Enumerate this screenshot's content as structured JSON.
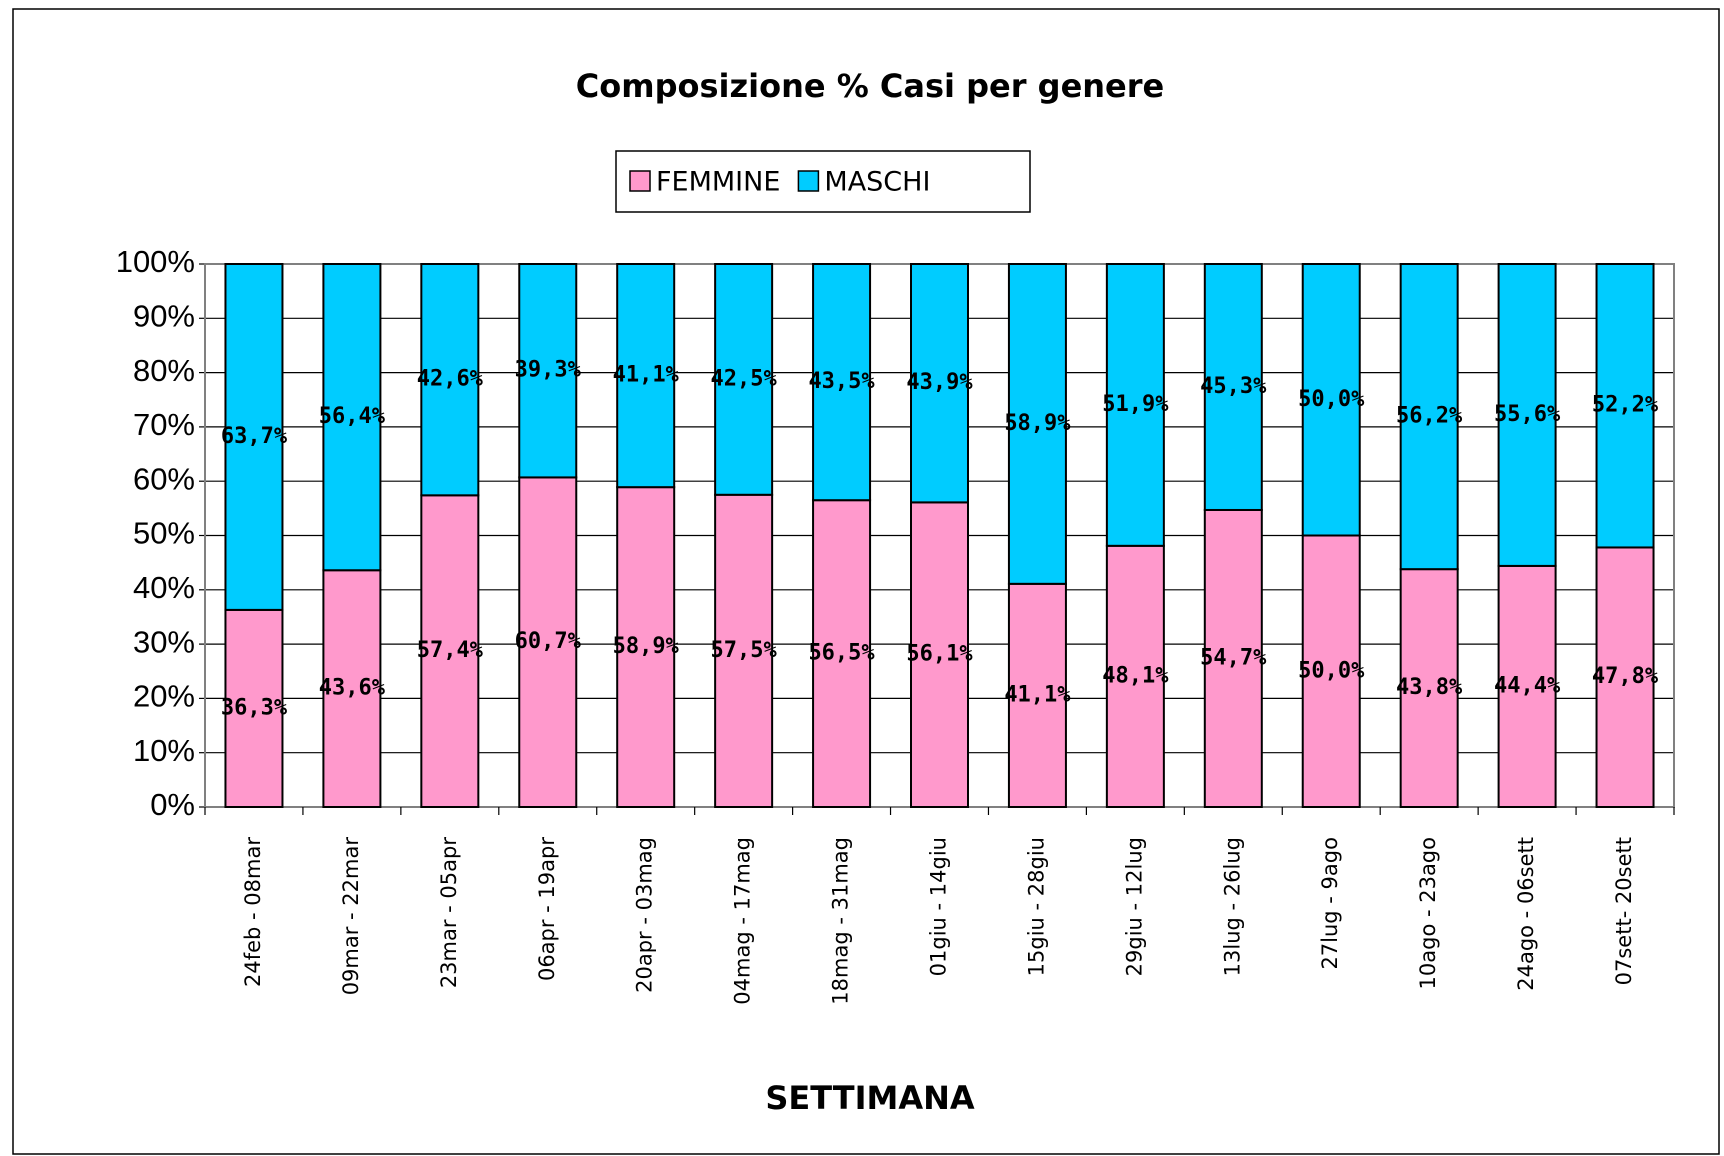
{
  "chart_data": {
    "type": "stacked_bar",
    "title": "Composizione % Casi per genere",
    "x_label": "SETTIMANA",
    "categories": [
      "24feb - 08mar",
      "09mar - 22mar",
      "23mar - 05apr",
      "06apr - 19apr",
      "20apr - 03mag",
      "04mag - 17mag",
      "18mag - 31mag",
      "01giu - 14giu",
      "15giu - 28giu",
      "29giu - 12lug",
      "13lug - 26lug",
      "27lug - 9ago",
      "10ago - 23ago",
      "24ago - 06sett",
      "07sett- 20sett"
    ],
    "series": [
      {
        "name": "FEMMINE",
        "color": "#ff99cc",
        "values": [
          36.3,
          43.6,
          57.4,
          60.7,
          58.9,
          57.5,
          56.5,
          56.1,
          41.1,
          48.1,
          54.7,
          50.0,
          43.8,
          44.4,
          47.8
        ],
        "value_labels": [
          "36,3%",
          "43,6%",
          "57,4%",
          "60,7%",
          "58,9%",
          "57,5%",
          "56,5%",
          "56,1%",
          "41,1%",
          "48,1%",
          "54,7%",
          "50,0%",
          "43,8%",
          "44,4%",
          "47,8%"
        ]
      },
      {
        "name": "MASCHI",
        "color": "#00ccff",
        "values": [
          63.7,
          56.4,
          42.6,
          39.3,
          41.1,
          42.5,
          43.5,
          43.9,
          58.9,
          51.9,
          45.3,
          50.0,
          56.2,
          55.6,
          52.2
        ],
        "value_labels": [
          "63,7%",
          "56,4%",
          "42,6%",
          "39,3%",
          "41,1%",
          "42,5%",
          "43,5%",
          "43,9%",
          "58,9%",
          "51,9%",
          "45,3%",
          "50,0%",
          "56,2%",
          "55,6%",
          "52,2%"
        ]
      }
    ],
    "ylim": [
      0,
      100
    ],
    "yticks": [
      {
        "value": 0,
        "label": "0%"
      },
      {
        "value": 10,
        "label": "10%"
      },
      {
        "value": 20,
        "label": "20%"
      },
      {
        "value": 30,
        "label": "30%"
      },
      {
        "value": 40,
        "label": "40%"
      },
      {
        "value": 50,
        "label": "50%"
      },
      {
        "value": 60,
        "label": "60%"
      },
      {
        "value": 70,
        "label": "70%"
      },
      {
        "value": 80,
        "label": "80%"
      },
      {
        "value": 90,
        "label": "90%"
      },
      {
        "value": 100,
        "label": "100%"
      }
    ],
    "grid": true,
    "legend": "top"
  }
}
